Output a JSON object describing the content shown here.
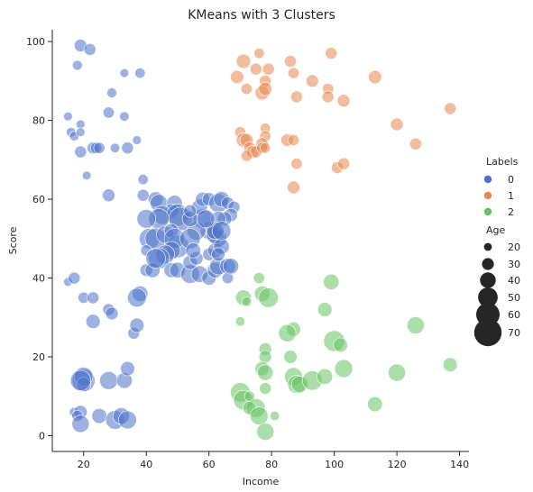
{
  "chart_data": {
    "type": "scatter",
    "title": "KMeans with 3 Clusters",
    "xlabel": "Income",
    "ylabel": "Score",
    "xlim": [
      10,
      143
    ],
    "ylim": [
      -4,
      103
    ],
    "xticks": [
      20,
      40,
      60,
      80,
      100,
      120,
      140
    ],
    "yticks": [
      0,
      20,
      40,
      60,
      80,
      100
    ],
    "grid": false,
    "legend_placement": "right",
    "hue_legend": {
      "title": "Labels",
      "entries": [
        {
          "label": "0",
          "color": "#4c72c9"
        },
        {
          "label": "1",
          "color": "#e8864e"
        },
        {
          "label": "2",
          "color": "#68c265"
        }
      ]
    },
    "size_legend": {
      "title": "Age",
      "entries": [
        {
          "label": "20",
          "age": 20
        },
        {
          "label": "30",
          "age": 30
        },
        {
          "label": "40",
          "age": 40
        },
        {
          "label": "50",
          "age": 50
        },
        {
          "label": "60",
          "age": 60
        },
        {
          "label": "70",
          "age": 70
        }
      ]
    },
    "series": [
      {
        "label": "0",
        "color": "#4c72c9",
        "points": [
          [
            19,
            99,
            32
          ],
          [
            22,
            98,
            30
          ],
          [
            18,
            94,
            25
          ],
          [
            33,
            92,
            22
          ],
          [
            38,
            92,
            26
          ],
          [
            29,
            87,
            25
          ],
          [
            28,
            82,
            28
          ],
          [
            33,
            81,
            24
          ],
          [
            15,
            81,
            22
          ],
          [
            16,
            77,
            24
          ],
          [
            19,
            79,
            22
          ],
          [
            17,
            76,
            24
          ],
          [
            19,
            77,
            22
          ],
          [
            23,
            73,
            30
          ],
          [
            24,
            73,
            28
          ],
          [
            25,
            73,
            28
          ],
          [
            30,
            73,
            24
          ],
          [
            34,
            73,
            30
          ],
          [
            37,
            75,
            22
          ],
          [
            19,
            72,
            30
          ],
          [
            21,
            66,
            22
          ],
          [
            28,
            61,
            32
          ],
          [
            39,
            65,
            26
          ],
          [
            39,
            61,
            30
          ],
          [
            43,
            60,
            38
          ],
          [
            44,
            59,
            44
          ],
          [
            49,
            59,
            40
          ],
          [
            48,
            57,
            36
          ],
          [
            45,
            56,
            48
          ],
          [
            50,
            56,
            56
          ],
          [
            51,
            55,
            60
          ],
          [
            44,
            55,
            52
          ],
          [
            40,
            55,
            48
          ],
          [
            41,
            50,
            52
          ],
          [
            43,
            50,
            54
          ],
          [
            46,
            51,
            44
          ],
          [
            48,
            52,
            36
          ],
          [
            50,
            48,
            58
          ],
          [
            49,
            50,
            52
          ],
          [
            48,
            47,
            46
          ],
          [
            46,
            46,
            48
          ],
          [
            44,
            45,
            54
          ],
          [
            40,
            47,
            28
          ],
          [
            40,
            42,
            32
          ],
          [
            42,
            42,
            38
          ],
          [
            43,
            45,
            50
          ],
          [
            48,
            42,
            38
          ],
          [
            50,
            42,
            40
          ],
          [
            54,
            41,
            48
          ],
          [
            57,
            41,
            42
          ],
          [
            60,
            40,
            36
          ],
          [
            62,
            42,
            40
          ],
          [
            63,
            43,
            44
          ],
          [
            66,
            43,
            40
          ],
          [
            66,
            40,
            28
          ],
          [
            67,
            43,
            40
          ],
          [
            54,
            44,
            36
          ],
          [
            56,
            45,
            34
          ],
          [
            60,
            46,
            32
          ],
          [
            62,
            47,
            38
          ],
          [
            63,
            50,
            42
          ],
          [
            60,
            52,
            44
          ],
          [
            58,
            55,
            50
          ],
          [
            57,
            58,
            40
          ],
          [
            58,
            60,
            36
          ],
          [
            60,
            60,
            34
          ],
          [
            63,
            59,
            48
          ],
          [
            64,
            60,
            40
          ],
          [
            66,
            59,
            32
          ],
          [
            68,
            58,
            30
          ],
          [
            67,
            56,
            34
          ],
          [
            65,
            55,
            36
          ],
          [
            63,
            55,
            38
          ],
          [
            62,
            51,
            46
          ],
          [
            64,
            48,
            40
          ],
          [
            62,
            52,
            44
          ],
          [
            56,
            52,
            48
          ],
          [
            54,
            50,
            52
          ],
          [
            55,
            47,
            38
          ],
          [
            54,
            55,
            40
          ],
          [
            59,
            55,
            46
          ],
          [
            63,
            46,
            34
          ],
          [
            54,
            57,
            32
          ],
          [
            64,
            52,
            48
          ],
          [
            15,
            39,
            22
          ],
          [
            17,
            40,
            30
          ],
          [
            20,
            35,
            28
          ],
          [
            23,
            35,
            30
          ],
          [
            28,
            32,
            30
          ],
          [
            29,
            31,
            32
          ],
          [
            23,
            29,
            36
          ],
          [
            36,
            26,
            30
          ],
          [
            37,
            28,
            36
          ],
          [
            38,
            36,
            40
          ],
          [
            37,
            35,
            48
          ],
          [
            20,
            14,
            58
          ],
          [
            20,
            15,
            48
          ],
          [
            20,
            13,
            36
          ],
          [
            19,
            14,
            52
          ],
          [
            28,
            14,
            46
          ],
          [
            33,
            14,
            40
          ],
          [
            34,
            17,
            36
          ],
          [
            17,
            6,
            24
          ],
          [
            19,
            6,
            34
          ],
          [
            18,
            5,
            28
          ],
          [
            19,
            3,
            44
          ],
          [
            25,
            5,
            38
          ],
          [
            30,
            4,
            48
          ],
          [
            32,
            5,
            42
          ],
          [
            34,
            4,
            46
          ]
        ]
      },
      {
        "label": "1",
        "color": "#e8864e",
        "points": [
          [
            71,
            95,
            36
          ],
          [
            75,
            93,
            30
          ],
          [
            76,
            97,
            26
          ],
          [
            79,
            93,
            30
          ],
          [
            86,
            95,
            30
          ],
          [
            87,
            92,
            28
          ],
          [
            78,
            90,
            30
          ],
          [
            77,
            87,
            36
          ],
          [
            78,
            88,
            34
          ],
          [
            69,
            91,
            34
          ],
          [
            72,
            88,
            28
          ],
          [
            88,
            86,
            30
          ],
          [
            93,
            90,
            32
          ],
          [
            99,
            97,
            30
          ],
          [
            98,
            88,
            28
          ],
          [
            98,
            86,
            30
          ],
          [
            103,
            85,
            32
          ],
          [
            113,
            91,
            34
          ],
          [
            137,
            83,
            30
          ],
          [
            120,
            79,
            32
          ],
          [
            126,
            74,
            30
          ],
          [
            78,
            78,
            26
          ],
          [
            78,
            76,
            28
          ],
          [
            77,
            74,
            32
          ],
          [
            70,
            77,
            28
          ],
          [
            71,
            75,
            36
          ],
          [
            72,
            75,
            34
          ],
          [
            73,
            73,
            30
          ],
          [
            74,
            72,
            32
          ],
          [
            75,
            72,
            30
          ],
          [
            72,
            71,
            28
          ],
          [
            77,
            73,
            28
          ],
          [
            78,
            73,
            26
          ],
          [
            85,
            75,
            32
          ],
          [
            87,
            75,
            28
          ],
          [
            88,
            69,
            28
          ],
          [
            101,
            68,
            30
          ],
          [
            103,
            69,
            30
          ],
          [
            87,
            63,
            32
          ]
        ]
      },
      {
        "label": "2",
        "color": "#68c265",
        "points": [
          [
            76,
            40,
            28
          ],
          [
            71,
            35,
            40
          ],
          [
            72,
            34,
            24
          ],
          [
            77,
            36,
            40
          ],
          [
            79,
            35,
            50
          ],
          [
            70,
            29,
            24
          ],
          [
            87,
            27,
            36
          ],
          [
            85,
            26,
            44
          ],
          [
            86,
            20,
            34
          ],
          [
            78,
            22,
            32
          ],
          [
            78,
            20,
            32
          ],
          [
            77,
            17,
            36
          ],
          [
            78,
            16,
            40
          ],
          [
            78,
            12,
            30
          ],
          [
            70,
            11,
            50
          ],
          [
            71,
            9,
            50
          ],
          [
            73,
            10,
            26
          ],
          [
            75,
            7,
            48
          ],
          [
            73,
            7,
            34
          ],
          [
            76,
            5,
            46
          ],
          [
            81,
            5,
            24
          ],
          [
            78,
            1,
            44
          ],
          [
            87,
            15,
            46
          ],
          [
            88,
            13,
            46
          ],
          [
            89,
            13,
            42
          ],
          [
            93,
            14,
            50
          ],
          [
            97,
            15,
            40
          ],
          [
            99,
            39,
            40
          ],
          [
            97,
            32,
            36
          ],
          [
            100,
            24,
            54
          ],
          [
            102,
            23,
            36
          ],
          [
            103,
            17,
            46
          ],
          [
            113,
            8,
            38
          ],
          [
            120,
            16,
            44
          ],
          [
            126,
            28,
            44
          ],
          [
            137,
            18,
            36
          ]
        ]
      }
    ]
  }
}
